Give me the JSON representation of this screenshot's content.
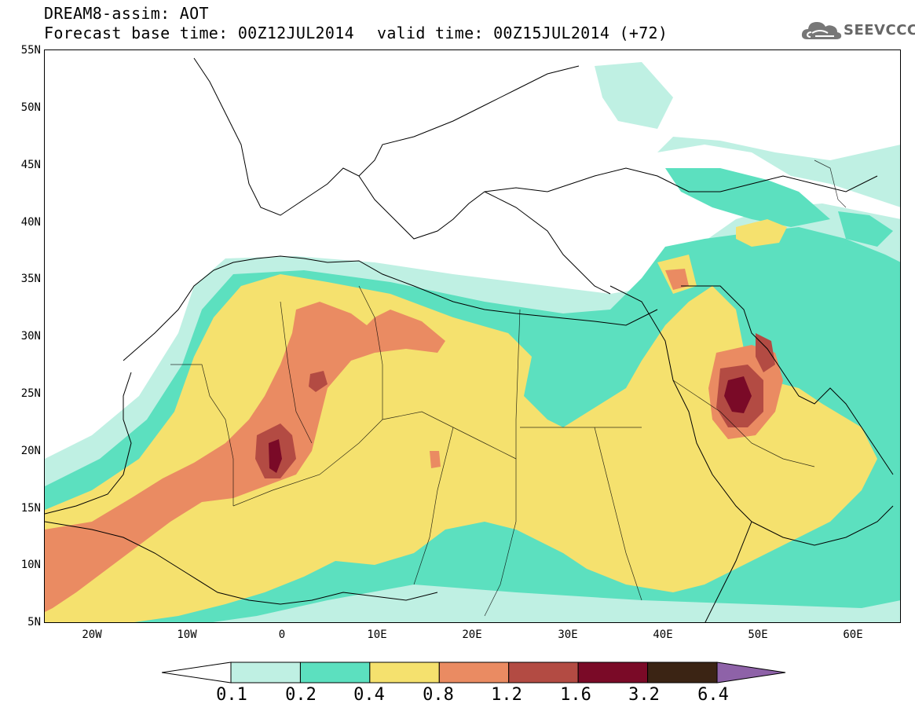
{
  "header": {
    "title_line1": "DREAM8-assim: AOT",
    "title_line2": "Forecast base time: 00Z12JUL2014",
    "valid_time": "valid time: 00Z15JUL2014 (+72)"
  },
  "logo": {
    "text": "SEEVCCC",
    "icon": "cloud-icon"
  },
  "map": {
    "region": "North Africa, Mediterranean, Middle East",
    "lon_range": [
      -25,
      65
    ],
    "lat_range": [
      5,
      55
    ],
    "lat_labels": [
      "55N",
      "50N",
      "45N",
      "40N",
      "35N",
      "30N",
      "25N",
      "20N",
      "15N",
      "10N",
      "5N"
    ],
    "lon_labels": [
      "20W",
      "10W",
      "0",
      "10E",
      "20E",
      "30E",
      "40E",
      "50E",
      "60E"
    ],
    "field": "Aerosol optical thickness (AOT)"
  },
  "colorbar": {
    "labels": [
      "0.1",
      "0.2",
      "0.4",
      "0.8",
      "1.2",
      "1.6",
      "3.2",
      "6.4"
    ],
    "colors": [
      "#ffffff",
      "#bff0e3",
      "#5ce0bf",
      "#f5e16e",
      "#ea8b62",
      "#b34b43",
      "#7a0a27",
      "#3b2414",
      "#8e62a8"
    ]
  }
}
